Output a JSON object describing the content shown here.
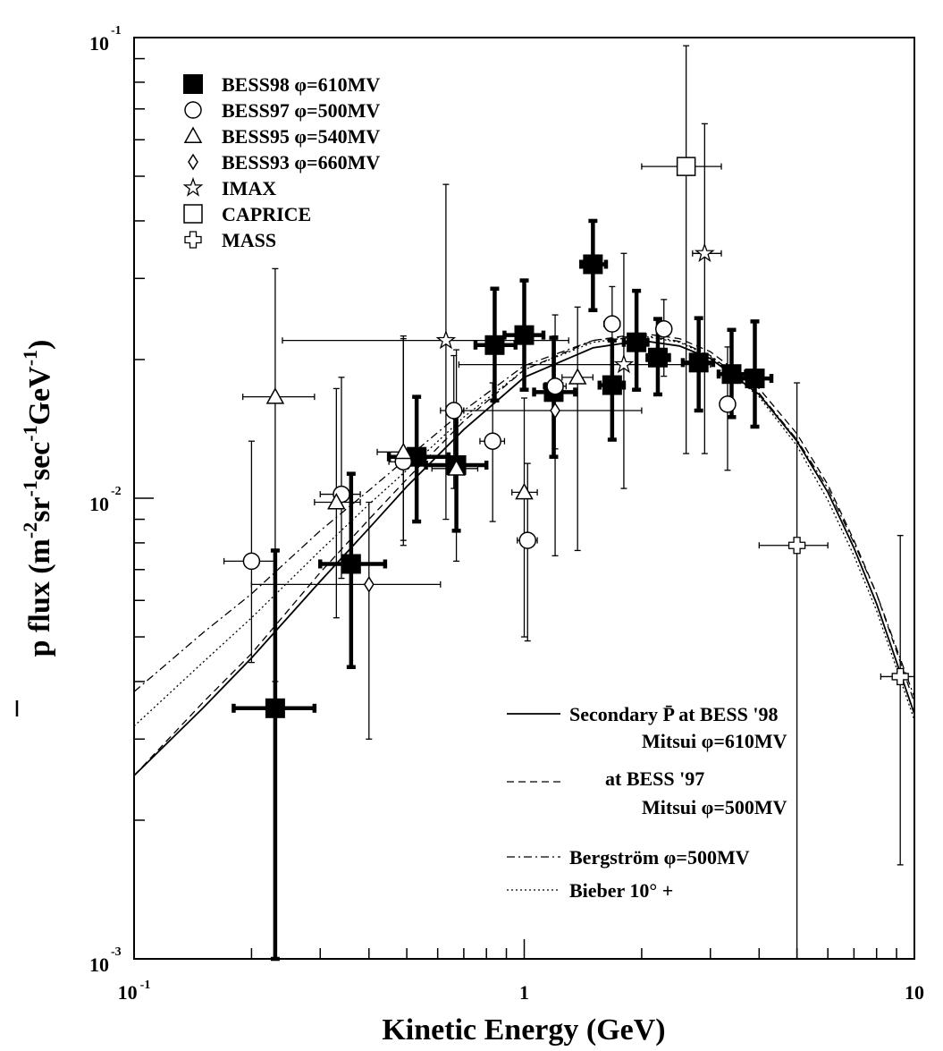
{
  "header_fragment": "",
  "chart_data": {
    "type": "scatter",
    "title": "",
    "xlabel": "Kinetic Energy (GeV)",
    "ylabel": {
      "main": "p flux (m",
      "e1": "-2",
      "p2": "sr",
      "e2": "-1",
      "p3": "sec",
      "e3": "-1",
      "p4": "GeV",
      "e4": "-1",
      "p5": ")"
    },
    "xscale": "log",
    "yscale": "log",
    "xlim": [
      0.1,
      10
    ],
    "ylim": [
      0.001,
      0.1
    ],
    "x_tick_labels": [
      {
        "value": 0.1,
        "base": "10",
        "exp": "-1"
      },
      {
        "value": 1,
        "base": "1",
        "exp": ""
      },
      {
        "value": 10,
        "base": "10",
        "exp": ""
      }
    ],
    "y_tick_labels": [
      {
        "value": 0.001,
        "base": "10",
        "exp": "-3"
      },
      {
        "value": 0.01,
        "base": "10",
        "exp": "-2"
      },
      {
        "value": 0.1,
        "base": "10",
        "exp": "-1"
      }
    ],
    "series": [
      {
        "name": "BESS98 φ=610MV",
        "marker": "filled-square",
        "points": [
          {
            "x": 0.23,
            "y": 0.0035,
            "xerr": [
              0.18,
              0.29
            ],
            "yerr": [
              0.001,
              0.0077
            ]
          },
          {
            "x": 0.36,
            "y": 0.0072,
            "xerr": [
              0.3,
              0.44
            ],
            "yerr": [
              0.0043,
              0.0113
            ]
          },
          {
            "x": 0.53,
            "y": 0.0123,
            "xerr": [
              0.45,
              0.64
            ],
            "yerr": [
              0.0089,
              0.0166
            ]
          },
          {
            "x": 0.67,
            "y": 0.0118,
            "xerr": [
              0.56,
              0.8
            ],
            "yerr": [
              0.0085,
              0.0155
            ]
          },
          {
            "x": 0.84,
            "y": 0.0215,
            "xerr": [
              0.75,
              0.95
            ],
            "yerr": [
              0.0163,
              0.0285
            ]
          },
          {
            "x": 1.0,
            "y": 0.0226,
            "xerr": [
              0.89,
              1.12
            ],
            "yerr": [
              0.0172,
              0.0297
            ]
          },
          {
            "x": 1.19,
            "y": 0.017,
            "xerr": [
              1.06,
              1.35
            ],
            "yerr": [
              0.0123,
              0.0223
            ]
          },
          {
            "x": 1.5,
            "y": 0.0322,
            "xerr": [
              1.4,
              1.62
            ],
            "yerr": [
              0.0256,
              0.04
            ]
          },
          {
            "x": 1.68,
            "y": 0.0176,
            "xerr": [
              1.56,
              1.8
            ],
            "yerr": [
              0.0134,
              0.022
            ]
          },
          {
            "x": 1.94,
            "y": 0.0218,
            "xerr": [
              1.8,
              2.07
            ],
            "yerr": [
              0.0172,
              0.0282
            ]
          },
          {
            "x": 2.2,
            "y": 0.0202,
            "xerr": [
              2.07,
              2.35
            ],
            "yerr": [
              0.0168,
              0.0245
            ]
          },
          {
            "x": 2.8,
            "y": 0.0197,
            "xerr": [
              2.55,
              3.05
            ],
            "yerr": [
              0.0155,
              0.0246
            ]
          },
          {
            "x": 3.4,
            "y": 0.0186,
            "xerr": [
              3.15,
              3.7
            ],
            "yerr": [
              0.015,
              0.0232
            ]
          },
          {
            "x": 3.9,
            "y": 0.0182,
            "xerr": [
              3.6,
              4.3
            ],
            "yerr": [
              0.0143,
              0.0242
            ]
          }
        ]
      },
      {
        "name": "BESS97 φ=500MV",
        "marker": "open-circle",
        "points": [
          {
            "x": 0.2,
            "y": 0.0073,
            "xerr": [
              0.17,
              0.23
            ],
            "yerr": [
              0.0044,
              0.0133
            ]
          },
          {
            "x": 0.34,
            "y": 0.0102,
            "xerr": [
              0.3,
              0.38
            ],
            "yerr": [
              0.0067,
              0.0183
            ]
          },
          {
            "x": 0.49,
            "y": 0.012,
            "xerr": [
              0.45,
              0.53
            ],
            "yerr": [
              0.0079,
              0.0222
            ]
          },
          {
            "x": 0.66,
            "y": 0.0155,
            "xerr": [
              0.61,
              0.7
            ],
            "yerr": [
              0.0105,
              0.0204
            ]
          },
          {
            "x": 0.83,
            "y": 0.0133,
            "xerr": [
              0.77,
              0.89
            ],
            "yerr": [
              0.0089,
              0.0178
            ]
          },
          {
            "x": 1.02,
            "y": 0.0081,
            "xerr": [
              0.96,
              1.08
            ],
            "yerr": [
              0.0049,
              0.0119
            ]
          },
          {
            "x": 1.2,
            "y": 0.0175,
            "xerr": [
              1.12,
              1.28
            ],
            "yerr": [
              0.0128,
              0.0225
            ]
          },
          {
            "x": 1.68,
            "y": 0.0239,
            "xerr": [
              1.6,
              1.76
            ],
            "yerr": [
              0.0195,
              0.0288
            ]
          },
          {
            "x": 2.28,
            "y": 0.0233,
            "xerr": [
              2.18,
              2.38
            ],
            "yerr": [
              0.0184,
              0.027
            ]
          },
          {
            "x": 3.32,
            "y": 0.016,
            "xerr": [
              3.18,
              3.46
            ],
            "yerr": [
              0.0115,
              0.0213
            ]
          }
        ]
      },
      {
        "name": "BESS95 φ=540MV",
        "marker": "open-triangle",
        "points": [
          {
            "x": 0.23,
            "y": 0.0166,
            "xerr": [
              0.19,
              0.29
            ],
            "yerr": [
              0.004,
              0.0315
            ]
          },
          {
            "x": 0.33,
            "y": 0.0098,
            "xerr": [
              0.29,
              0.38
            ],
            "yerr": [
              0.0055,
              0.0173
            ]
          },
          {
            "x": 0.49,
            "y": 0.0126,
            "xerr": [
              0.42,
              0.56
            ],
            "yerr": [
              0.0081,
              0.0225
            ]
          },
          {
            "x": 0.67,
            "y": 0.0116,
            "xerr": [
              0.58,
              0.76
            ],
            "yerr": [
              0.0073,
              0.021
            ]
          },
          {
            "x": 1.0,
            "y": 0.0103,
            "xerr": [
              0.93,
              1.08
            ],
            "yerr": [
              0.005,
              0.0165
            ]
          },
          {
            "x": 1.37,
            "y": 0.0183,
            "xerr": [
              1.25,
              1.5
            ],
            "yerr": [
              0.0077,
              0.026
            ]
          }
        ]
      },
      {
        "name": "BESS93 φ=660MV",
        "marker": "open-diamond",
        "points": [
          {
            "x": 0.4,
            "y": 0.0065,
            "xerr": [
              0.2,
              0.61
            ],
            "yerr": [
              0.003,
              0.0098
            ]
          },
          {
            "x": 1.2,
            "y": 0.0155,
            "xerr": [
              0.7,
              2.0
            ],
            "yerr": [
              0.0075,
              0.025
            ]
          }
        ]
      },
      {
        "name": "IMAX",
        "marker": "open-star",
        "points": [
          {
            "x": 0.63,
            "y": 0.022,
            "xerr": [
              0.24,
              1.3
            ],
            "yerr": [
              0.009,
              0.048
            ]
          },
          {
            "x": 1.8,
            "y": 0.0195,
            "xerr": [
              0.68,
              3.0
            ],
            "yerr": [
              0.0105,
              0.034
            ]
          },
          {
            "x": 2.9,
            "y": 0.034,
            "xerr": [
              2.7,
              3.2
            ],
            "yerr": [
              0.0125,
              0.065
            ]
          }
        ]
      },
      {
        "name": "CAPRICE",
        "marker": "open-square",
        "points": [
          {
            "x": 2.6,
            "y": 0.0525,
            "xerr": [
              2.0,
              3.2
            ],
            "yerr": [
              0.0125,
              0.096
            ]
          }
        ]
      },
      {
        "name": "MASS",
        "marker": "open-cross",
        "points": [
          {
            "x": 5.0,
            "y": 0.0079,
            "xerr": [
              4.0,
              6.0
            ],
            "yerr": [
              0.001,
              0.0178
            ]
          },
          {
            "x": 9.2,
            "y": 0.0041,
            "xerr": [
              8.2,
              10.0
            ],
            "yerr": [
              0.0016,
              0.0083
            ]
          }
        ]
      }
    ],
    "curves": [
      {
        "name": "Secondary P̄ at BESS '98  Mitsui φ=610MV",
        "style": "solid",
        "points": [
          [
            0.1,
            0.0025
          ],
          [
            0.15,
            0.0035
          ],
          [
            0.2,
            0.0045
          ],
          [
            0.3,
            0.0066
          ],
          [
            0.4,
            0.0086
          ],
          [
            0.5,
            0.0106
          ],
          [
            0.7,
            0.0141
          ],
          [
            1.0,
            0.0183
          ],
          [
            1.5,
            0.0212
          ],
          [
            2.0,
            0.022
          ],
          [
            2.5,
            0.0214
          ],
          [
            3.0,
            0.0201
          ],
          [
            4.0,
            0.0168
          ],
          [
            5.0,
            0.0133
          ],
          [
            6.0,
            0.0103
          ],
          [
            7.0,
            0.0078
          ],
          [
            8.0,
            0.0059
          ],
          [
            10.0,
            0.0034
          ]
        ]
      },
      {
        "name": "at BESS '97  Mitsui φ=500MV",
        "style": "dashed",
        "points": [
          [
            0.1,
            0.0025
          ],
          [
            0.15,
            0.0036
          ],
          [
            0.2,
            0.0046
          ],
          [
            0.3,
            0.0069
          ],
          [
            0.4,
            0.009
          ],
          [
            0.5,
            0.011
          ],
          [
            0.7,
            0.0147
          ],
          [
            1.0,
            0.019
          ],
          [
            1.5,
            0.022
          ],
          [
            2.0,
            0.0228
          ],
          [
            2.5,
            0.0222
          ],
          [
            3.0,
            0.0208
          ],
          [
            4.0,
            0.0173
          ],
          [
            5.0,
            0.0138
          ],
          [
            6.0,
            0.0107
          ],
          [
            7.0,
            0.0081
          ],
          [
            8.0,
            0.0062
          ],
          [
            10.0,
            0.0036
          ]
        ]
      },
      {
        "name": "Bergström φ=500MV",
        "style": "dashdot",
        "points": [
          [
            0.1,
            0.0038
          ],
          [
            0.15,
            0.0051
          ],
          [
            0.2,
            0.0062
          ],
          [
            0.3,
            0.0085
          ],
          [
            0.4,
            0.0104
          ],
          [
            0.5,
            0.0122
          ],
          [
            0.7,
            0.0155
          ],
          [
            1.0,
            0.0194
          ],
          [
            1.5,
            0.022
          ],
          [
            2.0,
            0.0226
          ],
          [
            2.5,
            0.0219
          ],
          [
            3.0,
            0.0204
          ],
          [
            4.0,
            0.0169
          ],
          [
            5.0,
            0.0134
          ],
          [
            6.0,
            0.0105
          ],
          [
            7.0,
            0.008
          ],
          [
            8.0,
            0.0062
          ],
          [
            10.0,
            0.0037
          ]
        ]
      },
      {
        "name": "Bieber 10° +",
        "style": "dotted",
        "points": [
          [
            0.1,
            0.0032
          ],
          [
            0.15,
            0.0044
          ],
          [
            0.2,
            0.0055
          ],
          [
            0.3,
            0.0077
          ],
          [
            0.4,
            0.0097
          ],
          [
            0.5,
            0.0115
          ],
          [
            0.7,
            0.015
          ],
          [
            1.0,
            0.019
          ],
          [
            1.5,
            0.0218
          ],
          [
            2.0,
            0.0225
          ],
          [
            2.5,
            0.0218
          ],
          [
            3.0,
            0.0203
          ],
          [
            4.0,
            0.0166
          ],
          [
            5.0,
            0.013
          ],
          [
            6.0,
            0.0099
          ],
          [
            7.0,
            0.0075
          ],
          [
            8.0,
            0.0057
          ],
          [
            10.0,
            0.0033
          ]
        ]
      }
    ],
    "legend_markers": [
      {
        "marker": "filled-square",
        "label": "BESS98 φ=610MV"
      },
      {
        "marker": "open-circle",
        "label": "BESS97 φ=500MV"
      },
      {
        "marker": "open-triangle",
        "label": "BESS95 φ=540MV"
      },
      {
        "marker": "open-diamond",
        "label": "BESS93 φ=660MV"
      },
      {
        "marker": "open-star",
        "label": "IMAX"
      },
      {
        "marker": "open-square",
        "label": "CAPRICE"
      },
      {
        "marker": "open-cross",
        "label": "MASS"
      }
    ],
    "legend_markers_placement": "top-left",
    "legend_lines": [
      {
        "style": "solid",
        "text": "Secondary P̄ at BESS '98",
        "sub": "Mitsui    φ=610MV"
      },
      {
        "style": "dashed",
        "text": "at BESS '97",
        "sub": "Mitsui    φ=500MV"
      },
      {
        "style": "dashdot",
        "text": "Bergström    φ=500MV",
        "sub": ""
      },
      {
        "style": "dotted",
        "text": "Bieber          10° +",
        "sub": ""
      }
    ],
    "legend_lines_placement": "bottom-right",
    "grid": false
  }
}
